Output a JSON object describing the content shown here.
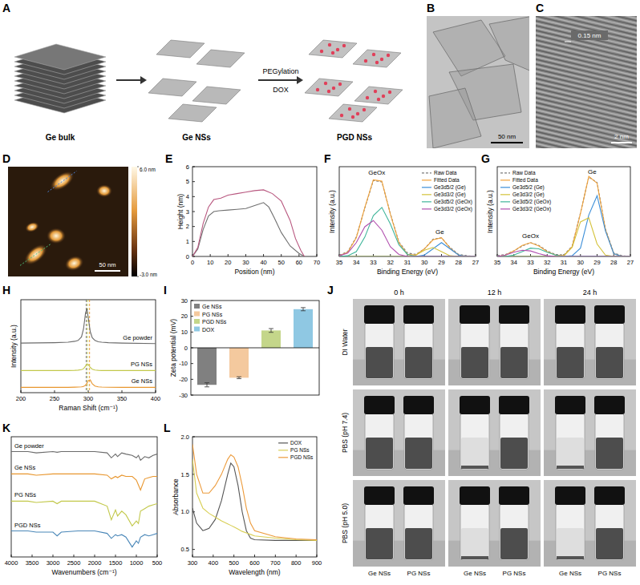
{
  "chart_data": [
    {
      "type": "diagram",
      "panel": "A",
      "labels": [
        "Ge bulk",
        "Ge NSs",
        "PGD NSs"
      ],
      "arrow_labels": [
        "PEGylation",
        "DOX"
      ]
    },
    {
      "type": "image",
      "panel": "B",
      "scale_bar": "50 nm"
    },
    {
      "type": "image",
      "panel": "C",
      "annotation": "0.15 nm",
      "scale_bar": "2 nm"
    },
    {
      "type": "image",
      "panel": "D",
      "scale_bar": "50 nm",
      "colorbar_range": [
        -3,
        6
      ],
      "colorbar_ticks": [
        {
          "value": 6,
          "label": "6.0 nm"
        },
        {
          "value": -3,
          "label": "-3.0 nm"
        }
      ]
    },
    {
      "type": "line",
      "panel": "E",
      "xlabel": "Position (nm)",
      "ylabel": "Height (nm)",
      "xlim": [
        0,
        70
      ],
      "xticks": [
        0,
        10,
        20,
        30,
        40,
        50,
        60,
        70
      ],
      "ylim": [
        0,
        6
      ],
      "yticks": [
        0,
        1,
        2,
        3,
        4,
        5,
        6
      ],
      "series": [
        {
          "color": "#707070",
          "x": [
            0,
            3,
            6,
            9,
            12,
            15,
            20,
            25,
            30,
            35,
            40,
            43,
            46,
            50,
            55,
            60,
            63
          ],
          "values": [
            0,
            0.5,
            1.8,
            2.7,
            3.0,
            3.05,
            3.1,
            3.15,
            3.2,
            3.4,
            3.6,
            3.3,
            2.6,
            1.6,
            0.7,
            0.2,
            0
          ]
        },
        {
          "color": "#b8577f",
          "x": [
            0,
            3,
            6,
            9,
            12,
            16,
            20,
            25,
            30,
            35,
            40,
            45,
            50,
            55,
            58,
            61,
            63
          ],
          "values": [
            0,
            0.6,
            2.2,
            3.3,
            3.8,
            3.9,
            4.1,
            4.2,
            4.3,
            4.4,
            4.45,
            4.2,
            3.7,
            2.4,
            1.2,
            0.4,
            0
          ]
        }
      ]
    },
    {
      "type": "line",
      "panel": "F",
      "xlabel": "Binding Energy (eV)",
      "ylabel": "Intensity (a.u.)",
      "xlim": [
        35,
        27
      ],
      "xticks": [
        35,
        34,
        33,
        32,
        31,
        30,
        29,
        28,
        27
      ],
      "ylim": [
        0,
        1.3
      ],
      "tick_labels": "x",
      "legend": "upper right",
      "x": [
        35,
        34.5,
        34,
        33.5,
        33,
        32.5,
        32,
        31.5,
        31,
        30.5,
        30,
        29.5,
        29,
        28.5,
        28,
        27.5,
        27
      ],
      "series": [
        {
          "name": "Raw Data",
          "color": "#7a7a7a",
          "line_style": "dashed",
          "values": [
            0.02,
            0.07,
            0.28,
            0.7,
            1.1,
            1.08,
            0.62,
            0.21,
            0.05,
            0.03,
            0.11,
            0.25,
            0.27,
            0.13,
            0.03,
            0.01,
            0
          ]
        },
        {
          "name": "Fitted Data",
          "color": "#f2a33a",
          "values": [
            0.01,
            0.06,
            0.27,
            0.71,
            1.11,
            1.09,
            0.61,
            0.2,
            0.03,
            0.02,
            0.11,
            0.24,
            0.27,
            0.12,
            0.02,
            0,
            0
          ]
        },
        {
          "name": "Ge3d5/2 (Ge)",
          "color": "#3b8ed8",
          "values": [
            0,
            0,
            0,
            0,
            0,
            0,
            0,
            0,
            0,
            0,
            0.02,
            0.11,
            0.2,
            0.11,
            0.02,
            0,
            0
          ]
        },
        {
          "name": "Ge3d3/2 (Ge)",
          "color": "#d4c23a",
          "values": [
            0,
            0,
            0,
            0,
            0,
            0,
            0,
            0,
            0,
            0.02,
            0.09,
            0.13,
            0.07,
            0.01,
            0,
            0,
            0
          ]
        },
        {
          "name": "Ge3d5/2 (GeOx)",
          "color": "#3fb59a",
          "values": [
            0,
            0.01,
            0.07,
            0.28,
            0.59,
            0.71,
            0.47,
            0.17,
            0.03,
            0,
            0,
            0,
            0,
            0,
            0,
            0,
            0
          ]
        },
        {
          "name": "Ge3d3/2 (GeOx)",
          "color": "#b14fae",
          "values": [
            0.01,
            0.05,
            0.2,
            0.43,
            0.52,
            0.38,
            0.14,
            0.03,
            0,
            0,
            0,
            0,
            0,
            0,
            0,
            0,
            0
          ]
        }
      ],
      "annotations": [
        {
          "text": "GeOx",
          "x": 32.8,
          "y": 1.18
        },
        {
          "text": "Ge",
          "x": 29.1,
          "y": 0.33
        }
      ]
    },
    {
      "type": "line",
      "panel": "G",
      "xlabel": "Binding Energy (eV)",
      "ylabel": "Intensity (a.u.)",
      "xlim": [
        35,
        27
      ],
      "xticks": [
        35,
        34,
        33,
        32,
        31,
        30,
        29,
        28,
        27
      ],
      "ylim": [
        0,
        1.3
      ],
      "tick_labels": "x",
      "legend": "upper left",
      "x": [
        35,
        34.5,
        34,
        33.5,
        33,
        32.5,
        32,
        31.5,
        31,
        30.5,
        30,
        29.5,
        29,
        28.5,
        28,
        27.5,
        27
      ],
      "series": [
        {
          "name": "Raw Data",
          "color": "#7a7a7a",
          "line_style": "dashed",
          "values": [
            0.01,
            0.03,
            0.08,
            0.15,
            0.2,
            0.16,
            0.08,
            0.03,
            0.02,
            0.15,
            0.63,
            1.15,
            1.07,
            0.4,
            0.05,
            0.01,
            0
          ]
        },
        {
          "name": "Fitted Data",
          "color": "#f2a33a",
          "values": [
            0,
            0.02,
            0.08,
            0.16,
            0.2,
            0.15,
            0.07,
            0.02,
            0.01,
            0.14,
            0.62,
            1.16,
            1.06,
            0.39,
            0.04,
            0,
            0
          ]
        },
        {
          "name": "Ge3d5/2 (Ge)",
          "color": "#3b8ed8",
          "values": [
            0,
            0,
            0,
            0,
            0,
            0,
            0,
            0,
            0,
            0.01,
            0.12,
            0.6,
            0.88,
            0.37,
            0.04,
            0,
            0
          ]
        },
        {
          "name": "Ge3d3/2 (Ge)",
          "color": "#d4c23a",
          "values": [
            0,
            0,
            0,
            0,
            0,
            0,
            0,
            0,
            0.01,
            0.13,
            0.5,
            0.56,
            0.18,
            0.02,
            0,
            0,
            0
          ]
        },
        {
          "name": "Ge3d5/2 (GeOx)",
          "color": "#3fb59a",
          "values": [
            0,
            0,
            0.02,
            0.07,
            0.12,
            0.11,
            0.06,
            0.02,
            0,
            0,
            0,
            0,
            0,
            0,
            0,
            0,
            0
          ]
        },
        {
          "name": "Ge3d3/2 (GeOx)",
          "color": "#b14fae",
          "values": [
            0,
            0.02,
            0.06,
            0.09,
            0.08,
            0.04,
            0.01,
            0,
            0,
            0,
            0,
            0,
            0,
            0,
            0,
            0,
            0
          ]
        }
      ],
      "annotations": [
        {
          "text": "Ge",
          "x": 29.3,
          "y": 1.2
        },
        {
          "text": "GeOx",
          "x": 33,
          "y": 0.27
        }
      ]
    },
    {
      "type": "line",
      "panel": "H",
      "xlabel": "Raman Shift (cm⁻¹)",
      "ylabel": "Intensity (a.u.)",
      "xlim": [
        200,
        400
      ],
      "xticks": [
        200,
        250,
        300,
        350,
        400
      ],
      "ylim": [
        0,
        10.5
      ],
      "tick_labels": "x",
      "x": [
        200,
        250,
        270,
        280,
        285,
        290,
        293,
        296,
        298,
        300,
        303,
        306,
        310,
        315,
        320,
        330,
        350,
        400
      ],
      "series": [
        {
          "name": "Ge powder",
          "color": "#6b6b6b",
          "values": [
            5.6,
            5.65,
            5.7,
            5.8,
            5.9,
            6.3,
            7.2,
            9.0,
            9.5,
            8.5,
            6.9,
            6.2,
            5.9,
            5.75,
            5.7,
            5.65,
            5.6,
            5.55
          ]
        },
        {
          "name": "PG NSs",
          "color": "#c2c84a",
          "values": [
            2.5,
            2.5,
            2.5,
            2.52,
            2.55,
            2.6,
            2.7,
            3.0,
            3.25,
            3.2,
            2.85,
            2.65,
            2.55,
            2.52,
            2.5,
            2.5,
            2.5,
            2.5
          ]
        },
        {
          "name": "Ge NSs",
          "color": "#e8962e",
          "values": [
            0.6,
            0.6,
            0.6,
            0.62,
            0.63,
            0.66,
            0.7,
            0.85,
            1.05,
            1.35,
            1.45,
            1.0,
            0.75,
            0.66,
            0.63,
            0.61,
            0.6,
            0.6
          ]
        }
      ],
      "reference_lines": [
        297,
        299,
        302
      ]
    },
    {
      "type": "bar",
      "panel": "I",
      "ylabel": "Zeta potential (mV)",
      "categories": [
        "Ge NSs",
        "PG NSs",
        "PGD NSs",
        "DOX"
      ],
      "values": [
        -23.5,
        -19,
        11,
        24.5
      ],
      "errors": [
        1.3,
        0.6,
        1.2,
        1.0
      ],
      "colors": [
        "#808080",
        "#f4c99e",
        "#c4d68a",
        "#8fc8e3"
      ],
      "ylim": [
        -30,
        30
      ],
      "yticks": [
        -30,
        -20,
        -10,
        0,
        10,
        20,
        30
      ],
      "tick_labels": "y",
      "legend": "upper left"
    },
    {
      "type": "photo_grid",
      "panel": "J",
      "columns": [
        "0 h",
        "12 h",
        "24 h"
      ],
      "rows": [
        "DI Water",
        "PBS (pH 7.4)",
        "PBS (pH 5.0)"
      ],
      "vial_labels": [
        "Ge NSs",
        "PG NSs"
      ],
      "dispersed": [
        [
          [
            true,
            true
          ],
          [
            true,
            true
          ],
          [
            true,
            true
          ]
        ],
        [
          [
            true,
            true
          ],
          [
            false,
            true
          ],
          [
            false,
            true
          ]
        ],
        [
          [
            true,
            true
          ],
          [
            false,
            true
          ],
          [
            false,
            true
          ]
        ]
      ]
    },
    {
      "type": "line",
      "panel": "K",
      "xlabel": "Wavenumbers (cm⁻¹)",
      "xlim": [
        4000,
        500
      ],
      "xticks": [
        4000,
        3500,
        3000,
        2500,
        2000,
        1500,
        1000,
        500
      ],
      "ylim": [
        0.5,
        10.2
      ],
      "tick_labels": "x",
      "x": [
        4000,
        3600,
        3400,
        3000,
        2900,
        2800,
        2400,
        2000,
        1700,
        1600,
        1500,
        1450,
        1350,
        1250,
        1100,
        1000,
        950,
        900,
        800,
        700,
        600,
        500
      ],
      "series": [
        {
          "name": "Ge powder",
          "color": "#6b6b6b",
          "values": [
            9.0,
            9.0,
            8.9,
            9.0,
            8.95,
            9.0,
            9.0,
            9.0,
            8.9,
            8.5,
            8.8,
            8.6,
            8.9,
            8.8,
            8.7,
            8.5,
            8.7,
            8.3,
            8.6,
            8.5,
            8.7,
            8.8
          ]
        },
        {
          "name": "Ge NSs",
          "color": "#e8962e",
          "values": [
            7.2,
            7.2,
            7.1,
            7.2,
            7.2,
            7.2,
            7.2,
            7.2,
            7.1,
            6.8,
            7.0,
            6.9,
            7.1,
            7.0,
            7.0,
            6.7,
            6.3,
            5.9,
            6.8,
            6.9,
            7.0,
            7.0
          ]
        },
        {
          "name": "PG NSs",
          "color": "#c2c84a",
          "values": [
            5.0,
            5.0,
            4.9,
            5.0,
            4.8,
            5.0,
            5.0,
            5.0,
            4.6,
            3.5,
            4.3,
            3.8,
            4.2,
            3.9,
            3.0,
            3.4,
            3.2,
            4.2,
            4.4,
            4.6,
            4.7,
            4.8
          ]
        },
        {
          "name": "PGD NSs",
          "color": "#4a87b8",
          "values": [
            2.6,
            2.6,
            2.5,
            2.5,
            2.2,
            2.5,
            2.6,
            2.6,
            2.4,
            2.0,
            2.3,
            2.2,
            2.3,
            2.1,
            1.3,
            1.8,
            1.6,
            2.1,
            2.3,
            2.2,
            2.3,
            2.4
          ]
        }
      ]
    },
    {
      "type": "line",
      "panel": "L",
      "xlabel": "Wavelength (nm)",
      "ylabel": "Absorbance",
      "xlim": [
        300,
        900
      ],
      "xticks": [
        300,
        400,
        500,
        600,
        700,
        800,
        900
      ],
      "ylim": [
        0.4,
        2.0
      ],
      "yticks": [
        0.5,
        {
          "value": 1,
          "label": "1.0"
        },
        1.5,
        {
          "value": 2,
          "label": "2.0"
        }
      ],
      "legend": "upper right",
      "x": [
        300,
        320,
        350,
        380,
        410,
        440,
        470,
        485,
        500,
        520,
        540,
        560,
        580,
        600,
        700,
        800,
        900
      ],
      "series": [
        {
          "name": "DOX",
          "color": "#555555",
          "values": [
            1.05,
            0.85,
            0.75,
            0.78,
            0.9,
            1.15,
            1.5,
            1.65,
            1.6,
            1.35,
            1.0,
            0.75,
            0.65,
            0.63,
            0.62,
            0.62,
            0.62
          ]
        },
        {
          "name": "PG NSs",
          "color": "#d8cf55",
          "values": [
            1.7,
            1.25,
            1.05,
            0.98,
            0.93,
            0.88,
            0.84,
            0.82,
            0.8,
            0.77,
            0.74,
            0.72,
            0.7,
            0.68,
            0.65,
            0.63,
            0.62
          ]
        },
        {
          "name": "PGD NSs",
          "color": "#ec9a3a",
          "values": [
            1.9,
            1.5,
            1.25,
            1.25,
            1.35,
            1.5,
            1.7,
            1.76,
            1.73,
            1.6,
            1.35,
            1.05,
            0.85,
            0.75,
            0.67,
            0.64,
            0.63
          ]
        }
      ]
    }
  ]
}
